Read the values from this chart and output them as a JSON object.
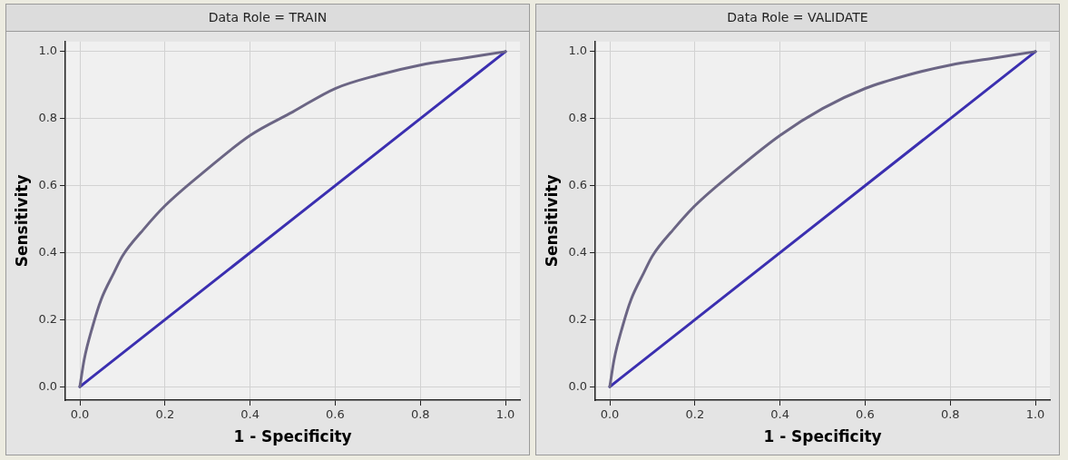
{
  "chart_data": [
    {
      "type": "line",
      "title": "Data Role = TRAIN",
      "xlabel": "1 - Specificity",
      "ylabel": "Sensitivity",
      "grid": true,
      "marker": "none",
      "legend": false,
      "xlim": [
        -0.034,
        1.034
      ],
      "ylim": [
        -0.04,
        1.03
      ],
      "xticks": [
        {
          "value": 0,
          "label": "0.0"
        },
        {
          "value": 0.2,
          "label": "0.2"
        },
        {
          "value": 0.4,
          "label": "0.4"
        },
        {
          "value": 0.6,
          "label": "0.6"
        },
        {
          "value": 0.8,
          "label": "0.8"
        },
        {
          "value": 1,
          "label": "1.0"
        }
      ],
      "yticks": [
        {
          "value": 0,
          "label": "0.0"
        },
        {
          "value": 0.2,
          "label": "0.2"
        },
        {
          "value": 0.4,
          "label": "0.4"
        },
        {
          "value": 0.6,
          "label": "0.6"
        },
        {
          "value": 0.8,
          "label": "0.8"
        },
        {
          "value": 1,
          "label": "1.0"
        }
      ],
      "series": [
        {
          "color": "#6b6584",
          "x": [
            0,
            0.01,
            0.03,
            0.05,
            0.08,
            0.1,
            0.15,
            0.2,
            0.3,
            0.4,
            0.5,
            0.6,
            0.7,
            0.8,
            0.9,
            1
          ],
          "values": [
            0,
            0.08,
            0.18,
            0.26,
            0.34,
            0.39,
            0.47,
            0.54,
            0.65,
            0.75,
            0.82,
            0.89,
            0.93,
            0.96,
            0.98,
            1
          ]
        },
        {
          "color": "#3b2fb0",
          "x": [
            0,
            1
          ],
          "values": [
            0,
            1
          ]
        }
      ]
    },
    {
      "type": "line",
      "title": "Data Role = VALIDATE",
      "xlabel": "1 - Specificity",
      "ylabel": "Sensitivity",
      "grid": true,
      "marker": "none",
      "legend": false,
      "xlim": [
        -0.034,
        1.034
      ],
      "ylim": [
        -0.04,
        1.03
      ],
      "xticks": [
        {
          "value": 0,
          "label": "0.0"
        },
        {
          "value": 0.2,
          "label": "0.2"
        },
        {
          "value": 0.4,
          "label": "0.4"
        },
        {
          "value": 0.6,
          "label": "0.6"
        },
        {
          "value": 0.8,
          "label": "0.8"
        },
        {
          "value": 1,
          "label": "1.0"
        }
      ],
      "yticks": [
        {
          "value": 0,
          "label": "0.0"
        },
        {
          "value": 0.2,
          "label": "0.2"
        },
        {
          "value": 0.4,
          "label": "0.4"
        },
        {
          "value": 0.6,
          "label": "0.6"
        },
        {
          "value": 0.8,
          "label": "0.8"
        },
        {
          "value": 1,
          "label": "1.0"
        }
      ],
      "series": [
        {
          "color": "#6b6584",
          "x": [
            0,
            0.01,
            0.03,
            0.05,
            0.08,
            0.1,
            0.15,
            0.2,
            0.3,
            0.4,
            0.5,
            0.6,
            0.7,
            0.8,
            0.9,
            1
          ],
          "values": [
            0,
            0.08,
            0.18,
            0.26,
            0.34,
            0.39,
            0.47,
            0.54,
            0.65,
            0.75,
            0.83,
            0.89,
            0.93,
            0.96,
            0.98,
            1
          ]
        },
        {
          "color": "#3b2fb0",
          "x": [
            0,
            1
          ],
          "values": [
            0,
            1
          ]
        }
      ]
    }
  ]
}
